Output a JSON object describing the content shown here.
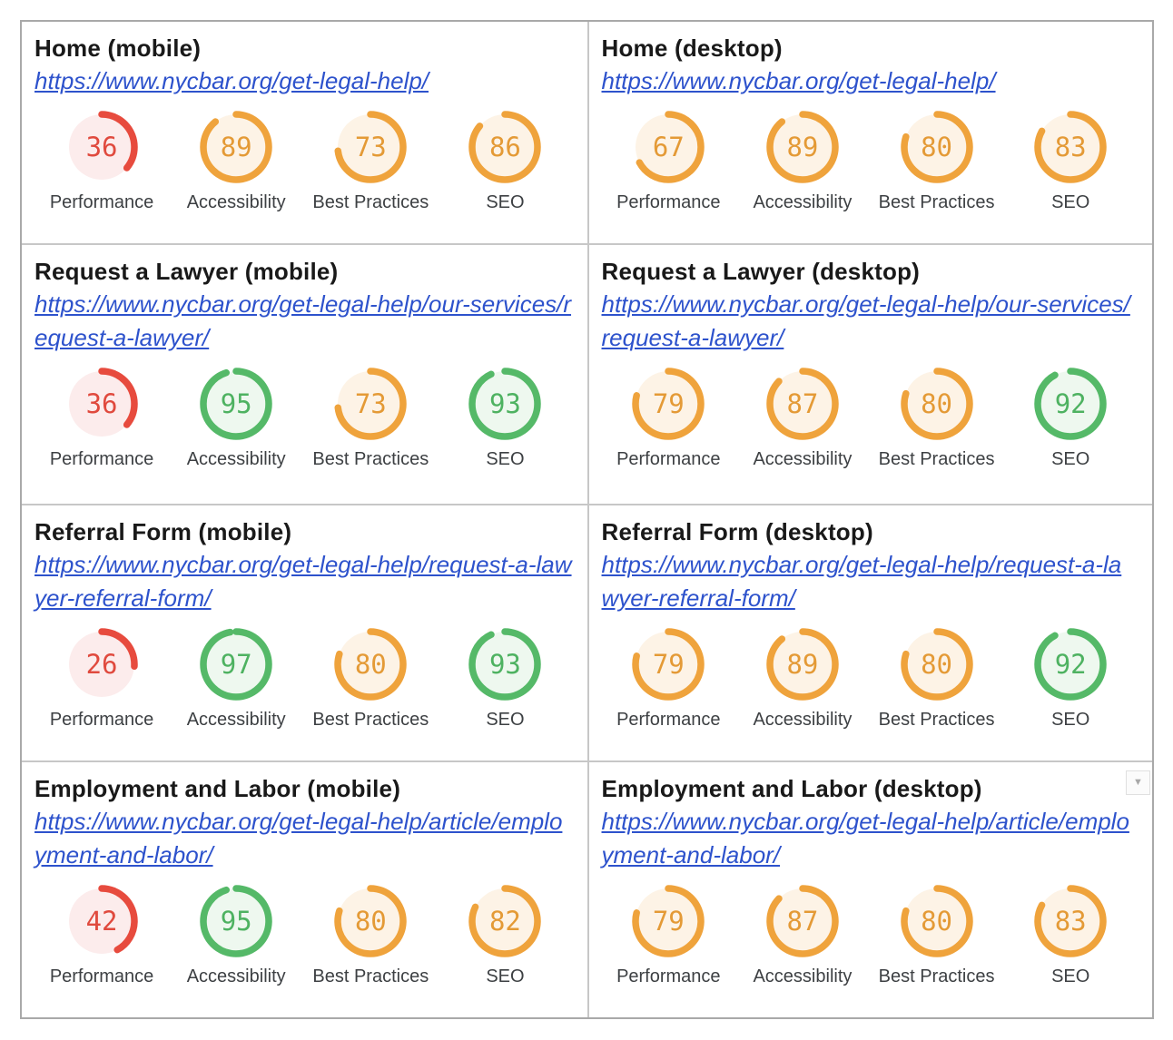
{
  "categories": [
    "Performance",
    "Accessibility",
    "Best Practices",
    "SEO"
  ],
  "score_colors": {
    "fail": {
      "arc": "#e74b3e",
      "text": "#e04a3e",
      "bg": "#fcecec"
    },
    "average": {
      "arc": "#efa33c",
      "text": "#e49a36",
      "bg": "#fdf3e6"
    },
    "pass": {
      "arc": "#55b968",
      "text": "#4eb261",
      "bg": "#eef8ef"
    }
  },
  "colors": {
    "link": "#2d52cc",
    "title": "#191919",
    "label": "#3d4043",
    "border_outer": "#a9a9a9",
    "border_inner": "#c7c7c7",
    "background": "#ffffff"
  },
  "icons": {
    "dropdown_arrow": "▼"
  },
  "chart_data": [
    {
      "type": "gauge",
      "title": "Home (mobile)",
      "url": "https://www.nycbar.org/get-legal-help/",
      "categories": [
        "Performance",
        "Accessibility",
        "Best Practices",
        "SEO"
      ],
      "values": [
        36,
        89,
        73,
        86
      ],
      "range": [
        0,
        100
      ]
    },
    {
      "type": "gauge",
      "title": "Home (desktop)",
      "url": "https://www.nycbar.org/get-legal-help/",
      "categories": [
        "Performance",
        "Accessibility",
        "Best Practices",
        "SEO"
      ],
      "values": [
        67,
        89,
        80,
        83
      ],
      "range": [
        0,
        100
      ]
    },
    {
      "type": "gauge",
      "title": "Request a Lawyer (mobile)",
      "url": "https://www.nycbar.org/get-legal-help/our-services/request-a-lawyer/",
      "categories": [
        "Performance",
        "Accessibility",
        "Best Practices",
        "SEO"
      ],
      "values": [
        36,
        95,
        73,
        93
      ],
      "range": [
        0,
        100
      ]
    },
    {
      "type": "gauge",
      "title": "Request a Lawyer (desktop)",
      "url": "https://www.nycbar.org/get-legal-help/our-services/request-a-lawyer/",
      "categories": [
        "Performance",
        "Accessibility",
        "Best Practices",
        "SEO"
      ],
      "values": [
        79,
        87,
        80,
        92
      ],
      "range": [
        0,
        100
      ]
    },
    {
      "type": "gauge",
      "title": "Referral Form (mobile)",
      "url": "https://www.nycbar.org/get-legal-help/request-a-lawyer-referral-form/",
      "categories": [
        "Performance",
        "Accessibility",
        "Best Practices",
        "SEO"
      ],
      "values": [
        26,
        97,
        80,
        93
      ],
      "range": [
        0,
        100
      ]
    },
    {
      "type": "gauge",
      "title": "Referral Form (desktop)",
      "url": "https://www.nycbar.org/get-legal-help/request-a-lawyer-referral-form/",
      "categories": [
        "Performance",
        "Accessibility",
        "Best Practices",
        "SEO"
      ],
      "values": [
        79,
        89,
        80,
        92
      ],
      "range": [
        0,
        100
      ]
    },
    {
      "type": "gauge",
      "title": "Employment and Labor (mobile)",
      "url": "https://www.nycbar.org/get-legal-help/article/employment-and-labor/",
      "categories": [
        "Performance",
        "Accessibility",
        "Best Practices",
        "SEO"
      ],
      "values": [
        42,
        95,
        80,
        82
      ],
      "range": [
        0,
        100
      ]
    },
    {
      "type": "gauge",
      "title": "Employment and Labor (desktop)",
      "url": "https://www.nycbar.org/get-legal-help/article/employment-and-labor/",
      "categories": [
        "Performance",
        "Accessibility",
        "Best Practices",
        "SEO"
      ],
      "values": [
        79,
        87,
        80,
        83
      ],
      "range": [
        0,
        100
      ],
      "has_dropdown": true
    }
  ]
}
